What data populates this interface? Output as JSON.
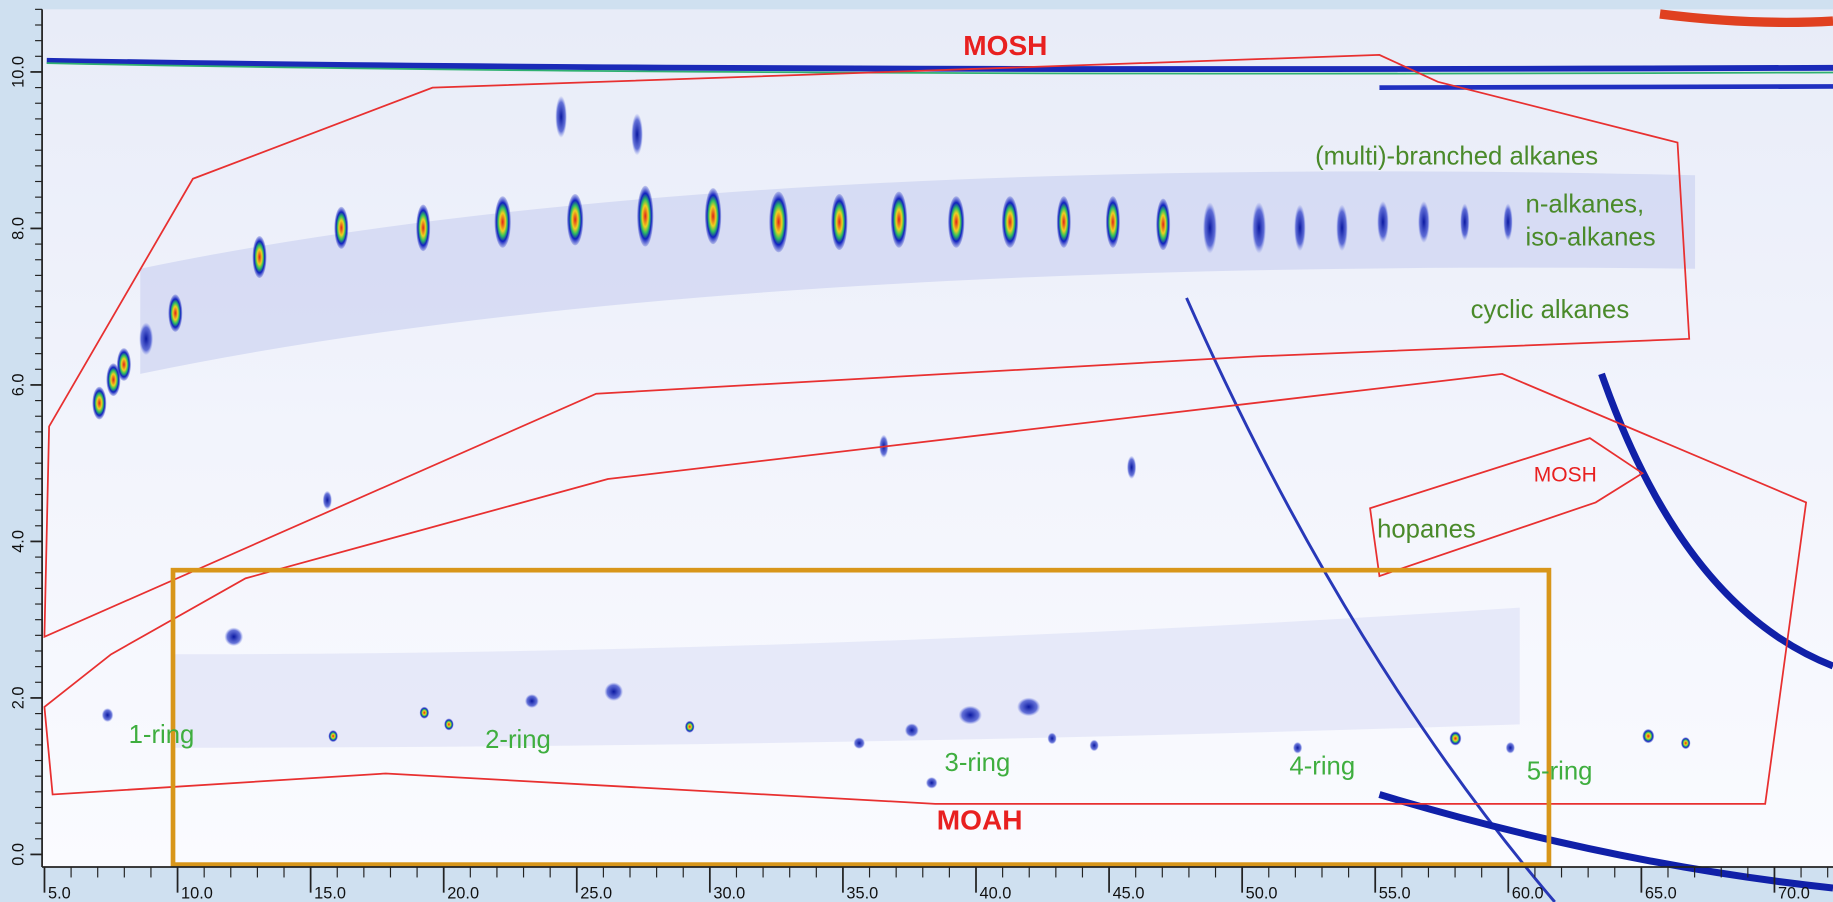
{
  "chart_data": {
    "type": "heatmap",
    "xlim": [
      4.91,
      72.2
    ],
    "ylim": [
      -0.16,
      10.8
    ],
    "xticks": [
      {
        "value": 5,
        "label": "5.0"
      },
      {
        "value": 10,
        "label": "10.0"
      },
      {
        "value": 15,
        "label": "15.0"
      },
      {
        "value": 20,
        "label": "20.0"
      },
      {
        "value": 25,
        "label": "25.0"
      },
      {
        "value": 30,
        "label": "30.0"
      },
      {
        "value": 35,
        "label": "35.0"
      },
      {
        "value": 40,
        "label": "40.0"
      },
      {
        "value": 45,
        "label": "45.0"
      },
      {
        "value": 50,
        "label": "50.0"
      },
      {
        "value": 55,
        "label": "55.0"
      },
      {
        "value": 60,
        "label": "60.0"
      },
      {
        "value": 65,
        "label": "65.0"
      },
      {
        "value": 70,
        "label": "70.0"
      }
    ],
    "yticks": [
      {
        "value": 0,
        "label": "0.0"
      },
      {
        "value": 2,
        "label": "2.0"
      },
      {
        "value": 4,
        "label": "4.0"
      },
      {
        "value": 6,
        "label": "6.0"
      },
      {
        "value": 8,
        "label": "8.0"
      },
      {
        "value": 10,
        "label": "10.0"
      }
    ],
    "annotations": {
      "mosh": "MOSH",
      "moah": "MOAH",
      "mosh_hopanes": "MOSH",
      "branched": "(multi)-branched alkanes",
      "n_alkanes": "n-alkanes,",
      "iso_alkanes": "iso-alkanes",
      "cyclic": "cyclic alkanes",
      "hopanes": "hopanes",
      "ring1": "1-ring",
      "ring2": "2-ring",
      "ring3": "3-ring",
      "ring4": "4-ring",
      "ring5": "5-ring"
    }
  }
}
